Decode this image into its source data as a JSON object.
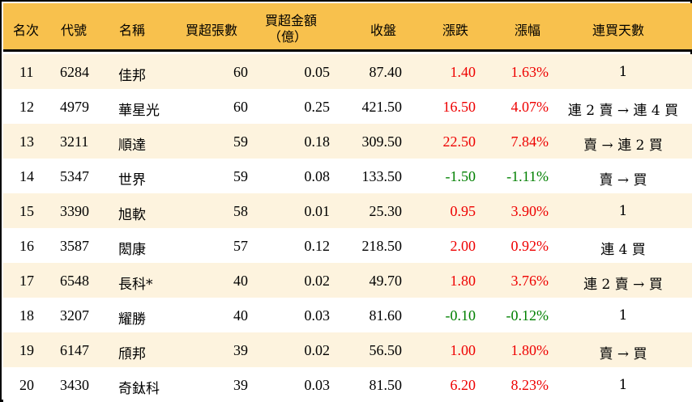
{
  "table": {
    "headers": {
      "rank": "名次",
      "code": "代號",
      "name": "名稱",
      "net_buy_lots": "買超張數",
      "net_buy_amount_line1": "買超金額",
      "net_buy_amount_line2": "（億）",
      "close": "收盤",
      "change": "漲跌",
      "change_pct": "漲幅",
      "streak": "連買天數"
    },
    "colors": {
      "header_bg": "#f8c14d",
      "odd_row_bg": "#fdf3de",
      "even_row_bg": "#ffffff",
      "up": "#ee0000",
      "down": "#008000"
    },
    "rows": [
      {
        "rank": "11",
        "code": "6284",
        "name": "佳邦",
        "lots": "60",
        "amount": "0.05",
        "close": "87.40",
        "change": "1.40",
        "pct": "1.63%",
        "dir": "up",
        "streak": "1"
      },
      {
        "rank": "12",
        "code": "4979",
        "name": "華星光",
        "lots": "60",
        "amount": "0.25",
        "close": "421.50",
        "change": "16.50",
        "pct": "4.07%",
        "dir": "up",
        "streak": "連 2 賣 → 連 4 買"
      },
      {
        "rank": "13",
        "code": "3211",
        "name": "順達",
        "lots": "59",
        "amount": "0.18",
        "close": "309.50",
        "change": "22.50",
        "pct": "7.84%",
        "dir": "up",
        "streak": "賣 → 連 2 買"
      },
      {
        "rank": "14",
        "code": "5347",
        "name": "世界",
        "lots": "59",
        "amount": "0.08",
        "close": "133.50",
        "change": "-1.50",
        "pct": "-1.11%",
        "dir": "down",
        "streak": "賣 → 買"
      },
      {
        "rank": "15",
        "code": "3390",
        "name": "旭軟",
        "lots": "58",
        "amount": "0.01",
        "close": "25.30",
        "change": "0.95",
        "pct": "3.90%",
        "dir": "up",
        "streak": "1"
      },
      {
        "rank": "16",
        "code": "3587",
        "name": "閎康",
        "lots": "57",
        "amount": "0.12",
        "close": "218.50",
        "change": "2.00",
        "pct": "0.92%",
        "dir": "up",
        "streak": "連 4 買"
      },
      {
        "rank": "17",
        "code": "6548",
        "name": "長科*",
        "lots": "40",
        "amount": "0.02",
        "close": "49.70",
        "change": "1.80",
        "pct": "3.76%",
        "dir": "up",
        "streak": "連 2 賣 → 買"
      },
      {
        "rank": "18",
        "code": "3207",
        "name": "耀勝",
        "lots": "40",
        "amount": "0.03",
        "close": "81.60",
        "change": "-0.10",
        "pct": "-0.12%",
        "dir": "down",
        "streak": "1"
      },
      {
        "rank": "19",
        "code": "6147",
        "name": "頎邦",
        "lots": "39",
        "amount": "0.02",
        "close": "56.50",
        "change": "1.00",
        "pct": "1.80%",
        "dir": "up",
        "streak": "賣 → 買"
      },
      {
        "rank": "20",
        "code": "3430",
        "name": "奇鈦科",
        "lots": "39",
        "amount": "0.03",
        "close": "81.50",
        "change": "6.20",
        "pct": "8.23%",
        "dir": "up",
        "streak": "1"
      }
    ]
  }
}
